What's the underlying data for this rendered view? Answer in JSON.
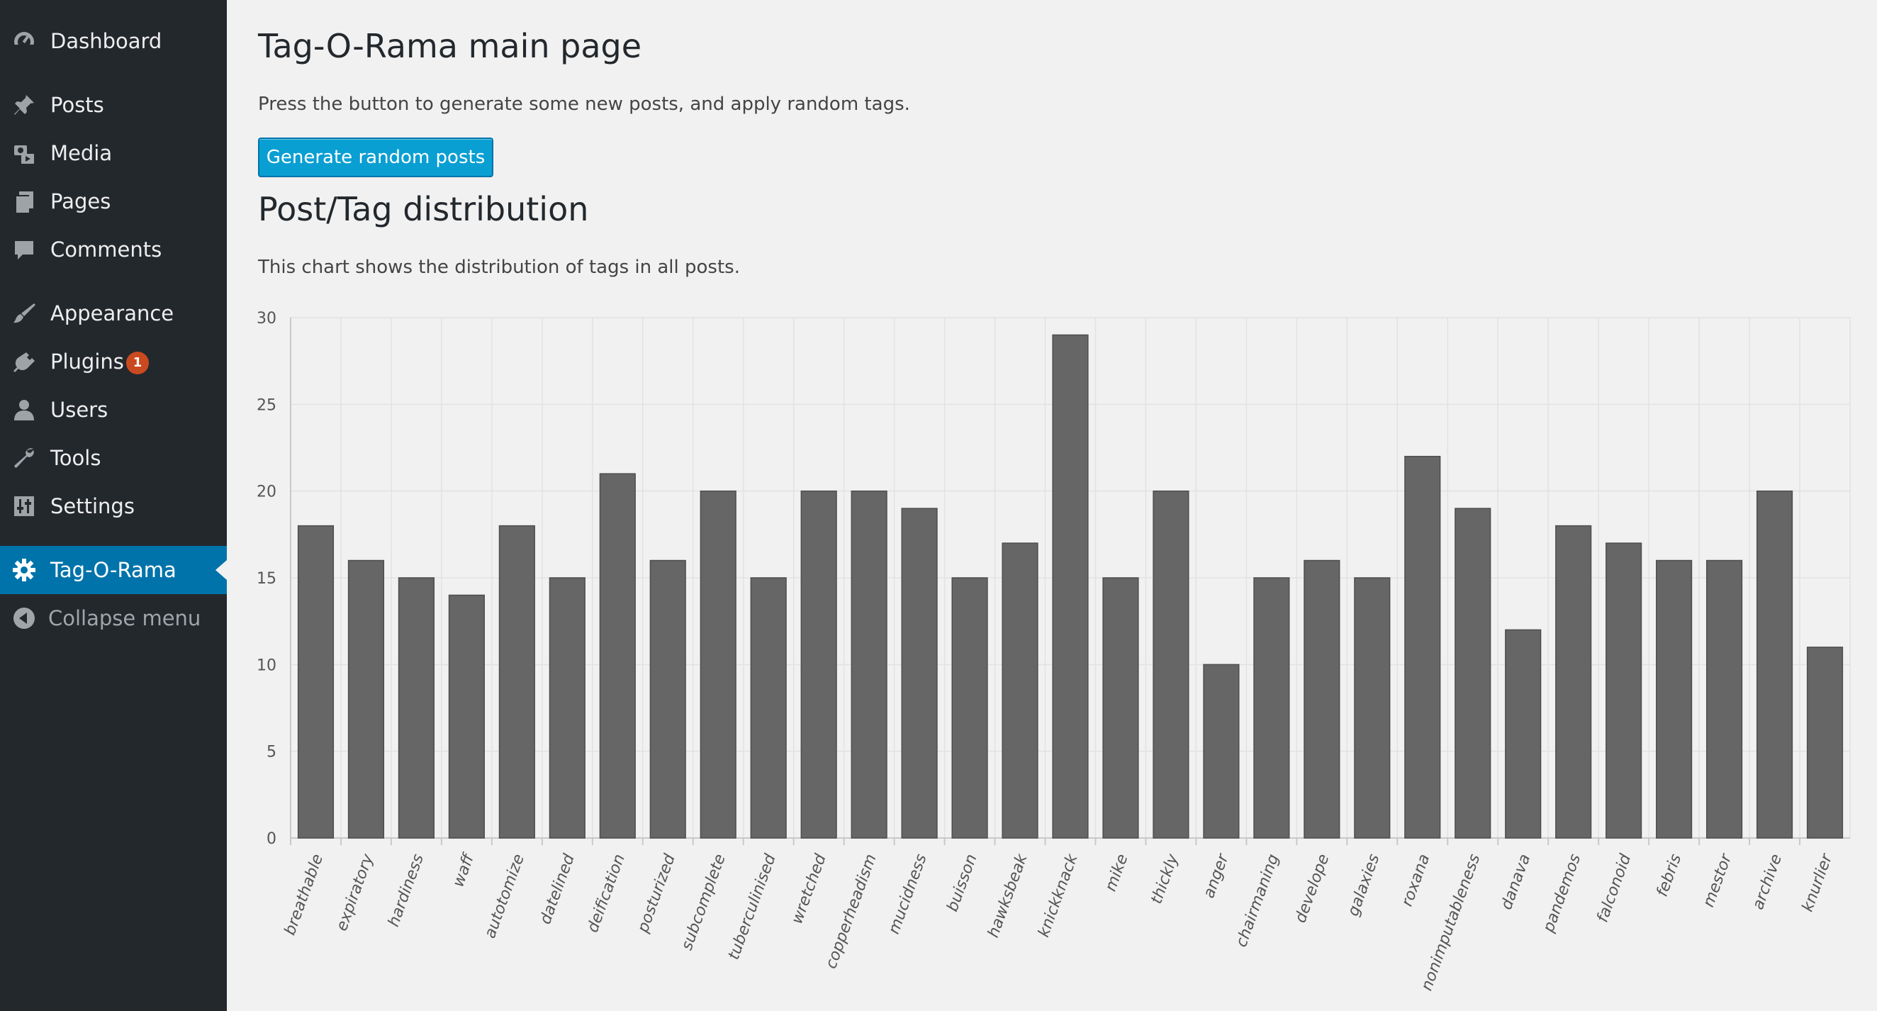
{
  "sidebar": {
    "items": [
      {
        "label": "Dashboard",
        "icon": "dashboard-icon"
      },
      {
        "label": "Posts",
        "icon": "pushpin-icon"
      },
      {
        "label": "Media",
        "icon": "media-icon"
      },
      {
        "label": "Pages",
        "icon": "pages-icon"
      },
      {
        "label": "Comments",
        "icon": "comment-icon"
      },
      {
        "label": "Appearance",
        "icon": "paintbrush-icon"
      },
      {
        "label": "Plugins",
        "icon": "plugin-icon",
        "badge": "1"
      },
      {
        "label": "Users",
        "icon": "user-icon"
      },
      {
        "label": "Tools",
        "icon": "wrench-icon"
      },
      {
        "label": "Settings",
        "icon": "settings-sliders-icon"
      },
      {
        "label": "Tag-O-Rama",
        "icon": "gear-icon",
        "active": true
      }
    ],
    "collapse_label": "Collapse menu"
  },
  "main": {
    "title": "Tag-O-Rama main page",
    "intro": "Press the button to generate some new posts, and apply random tags.",
    "button_label": "Generate random posts",
    "section_title": "Post/Tag distribution",
    "chart_description": "This chart shows the distribution of tags in all posts."
  },
  "colors": {
    "sidebar_bg": "#23282d",
    "active_bg": "#0073aa",
    "button_bg": "#0a9fd3",
    "bar_fill": "#666666",
    "badge_bg": "#ca4a1f"
  },
  "chart_data": {
    "type": "bar",
    "categories": [
      "breathable",
      "expiratory",
      "hardiness",
      "waff",
      "autotomize",
      "datelined",
      "deification",
      "posturized",
      "subcomplete",
      "tuberculinised",
      "wretched",
      "copperheadism",
      "mucidness",
      "buisson",
      "hawksbeak",
      "knickknack",
      "mike",
      "thickly",
      "anger",
      "chairmaning",
      "develope",
      "galaxies",
      "roxana",
      "nonimputableness",
      "danava",
      "pandemos",
      "falconoid",
      "febris",
      "mestor",
      "archive",
      "knurlier"
    ],
    "values": [
      18,
      16,
      15,
      14,
      18,
      15,
      21,
      16,
      20,
      15,
      20,
      20,
      19,
      15,
      17,
      29,
      15,
      20,
      10,
      15,
      16,
      15,
      22,
      19,
      12,
      18,
      17,
      16,
      16,
      20,
      11
    ],
    "ylim": [
      0,
      30
    ],
    "yticks": [
      0,
      5,
      10,
      15,
      20,
      25,
      30
    ],
    "grid": true,
    "legend": "none"
  }
}
